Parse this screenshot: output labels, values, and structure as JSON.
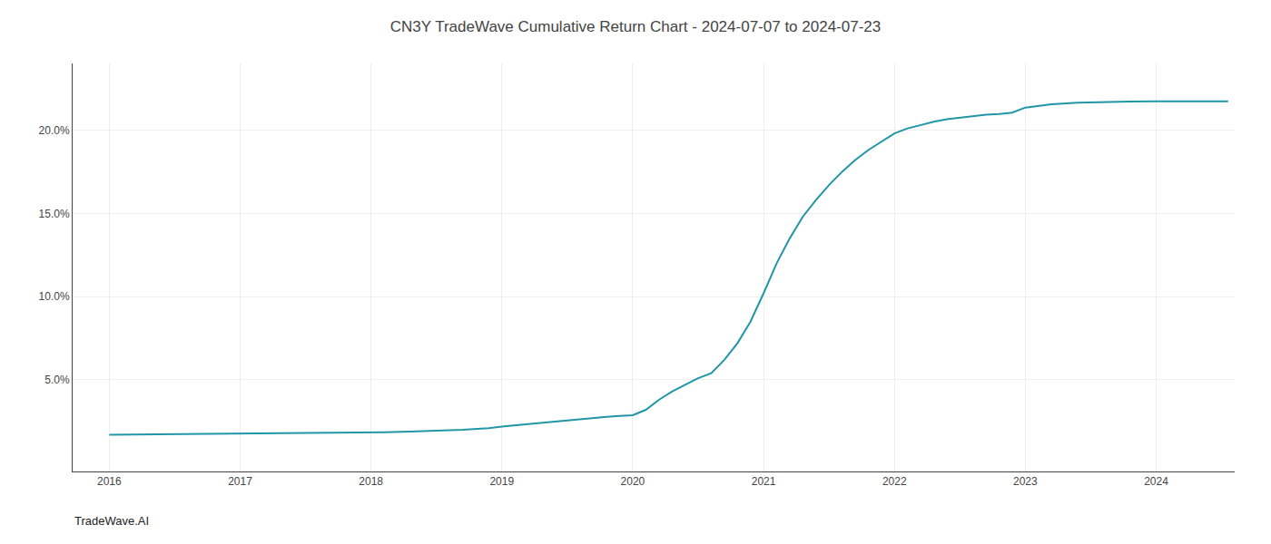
{
  "chart_data": {
    "type": "line",
    "title": "CN3Y TradeWave Cumulative Return Chart - 2024-07-07 to 2024-07-23",
    "annotations": [
      "TradeWave.AI"
    ],
    "color": "#2196a6",
    "grid": true,
    "x": [
      2016.0,
      2016.15,
      2016.3,
      2016.5,
      2016.7,
      2016.9,
      2017.1,
      2017.3,
      2017.5,
      2017.7,
      2017.9,
      2018.1,
      2018.3,
      2018.5,
      2018.7,
      2018.9,
      2019.0,
      2019.2,
      2019.4,
      2019.55,
      2019.6,
      2019.7,
      2019.8,
      2019.9,
      2020.0,
      2020.1,
      2020.2,
      2020.3,
      2020.4,
      2020.5,
      2020.6,
      2020.7,
      2020.8,
      2020.9,
      2021.0,
      2021.1,
      2021.2,
      2021.3,
      2021.4,
      2021.5,
      2021.6,
      2021.7,
      2021.8,
      2021.9,
      2022.0,
      2022.1,
      2022.2,
      2022.3,
      2022.4,
      2022.5,
      2022.6,
      2022.7,
      2022.8,
      2022.9,
      2023.0,
      2023.2,
      2023.4,
      2023.6,
      2023.8,
      2024.0,
      2024.2,
      2024.4,
      2024.55
    ],
    "values": [
      1.7,
      1.71,
      1.72,
      1.73,
      1.75,
      1.77,
      1.79,
      1.8,
      1.81,
      1.82,
      1.83,
      1.86,
      1.9,
      1.95,
      2.0,
      2.1,
      2.2,
      2.35,
      2.5,
      2.6,
      2.65,
      2.72,
      2.78,
      2.83,
      2.88,
      3.2,
      3.8,
      4.3,
      4.7,
      5.1,
      5.4,
      6.2,
      7.2,
      8.5,
      10.2,
      12.0,
      13.5,
      14.8,
      15.8,
      16.7,
      17.5,
      18.2,
      18.8,
      19.3,
      19.8,
      20.1,
      20.3,
      20.5,
      20.65,
      20.75,
      20.85,
      20.92,
      20.97,
      21.05,
      21.35,
      21.55,
      21.65,
      21.7,
      21.72,
      21.73,
      21.73,
      21.73,
      21.73
    ],
    "xlim": [
      2015.72,
      2024.6
    ],
    "xticks": [
      2016,
      2017,
      2018,
      2019,
      2020,
      2021,
      2022,
      2023,
      2024
    ],
    "ylim": [
      -0.5,
      24.0
    ],
    "yticks": [
      {
        "value": 5.0,
        "label": "5.0%"
      },
      {
        "value": 10.0,
        "label": "10.0%"
      },
      {
        "value": 15.0,
        "label": "15.0%"
      },
      {
        "value": 20.0,
        "label": "20.0%"
      }
    ]
  }
}
